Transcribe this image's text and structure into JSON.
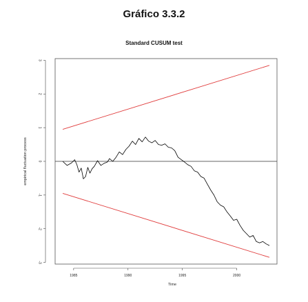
{
  "figure_title": "Gráfico 3.3.2",
  "chart_data": {
    "type": "line",
    "title": "Standard CUSUM test",
    "xlabel": "Time",
    "ylabel": "empirical fluctuation process",
    "xlim": [
      1983.3,
      2003.7
    ],
    "ylim": [
      -3.05,
      3.05
    ],
    "x_ticks": [
      1985,
      1990,
      1995,
      2000
    ],
    "y_ticks": [
      -3,
      -2,
      -1,
      0,
      1,
      2,
      3
    ],
    "grid": false,
    "reference_line": 0,
    "series": [
      {
        "color": "#000000",
        "x": [
          1984.0,
          1984.4,
          1984.8,
          1985.1,
          1985.3,
          1985.5,
          1985.7,
          1985.9,
          1986.1,
          1986.3,
          1986.5,
          1986.7,
          1986.9,
          1987.2,
          1987.5,
          1987.8,
          1988.1,
          1988.3,
          1988.6,
          1988.9,
          1989.2,
          1989.5,
          1989.8,
          1990.1,
          1990.4,
          1990.7,
          1991.0,
          1991.3,
          1991.6,
          1991.9,
          1992.2,
          1992.5,
          1992.8,
          1993.1,
          1993.4,
          1993.7,
          1994.0,
          1994.3,
          1994.6,
          1994.9,
          1995.2,
          1995.5,
          1995.8,
          1996.1,
          1996.4,
          1996.7,
          1997.0,
          1997.3,
          1997.6,
          1997.9,
          1998.2,
          1998.5,
          1998.8,
          1999.1,
          1999.4,
          1999.7,
          2000.0,
          2000.3,
          2000.6,
          2000.9,
          2001.2,
          2001.5,
          2001.8,
          2002.1,
          2002.4,
          2002.7,
          2003.0
        ],
        "y": [
          0.0,
          -0.12,
          -0.05,
          0.05,
          -0.1,
          -0.32,
          -0.2,
          -0.52,
          -0.45,
          -0.18,
          -0.35,
          -0.22,
          -0.15,
          0.02,
          -0.12,
          -0.06,
          -0.02,
          0.08,
          0.0,
          0.12,
          0.28,
          0.2,
          0.35,
          0.45,
          0.6,
          0.5,
          0.68,
          0.58,
          0.72,
          0.6,
          0.55,
          0.62,
          0.5,
          0.48,
          0.52,
          0.42,
          0.4,
          0.32,
          0.12,
          0.05,
          -0.02,
          -0.1,
          -0.15,
          -0.28,
          -0.32,
          -0.45,
          -0.5,
          -0.68,
          -0.85,
          -1.0,
          -1.2,
          -1.3,
          -1.35,
          -1.5,
          -1.62,
          -1.75,
          -1.72,
          -1.9,
          -2.05,
          -2.15,
          -2.25,
          -2.2,
          -2.38,
          -2.42,
          -2.38,
          -2.45,
          -2.5
        ]
      }
    ],
    "boundaries": {
      "color": "#e03c3c",
      "upper": {
        "x": [
          1984.0,
          2003.0
        ],
        "y": [
          0.95,
          2.85
        ]
      },
      "lower": {
        "x": [
          1984.0,
          2003.0
        ],
        "y": [
          -0.95,
          -2.85
        ]
      }
    }
  }
}
